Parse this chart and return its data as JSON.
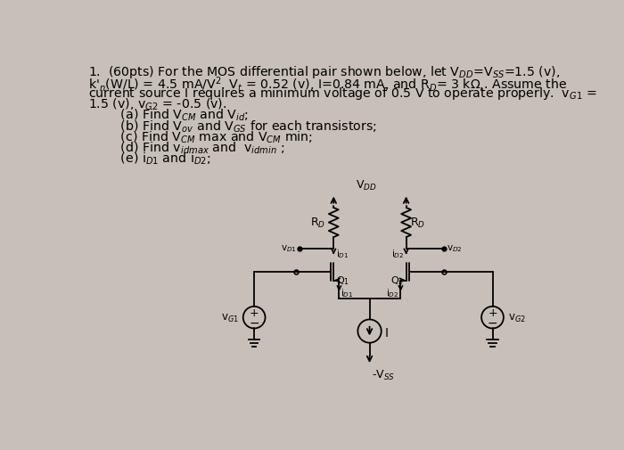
{
  "background_color": "#c8c0b8",
  "title_line1": "1.  (60pts) For the MOS differential pair shown below, let V$_{DD}$=V$_{SS}$=1.5 (v),",
  "title_line2": "k$'_n$(W/L) = 4.5 mA/V$^2$, V$_t$ = 0.52 (v), I=0.84 mA, and R$_D$= 3 kΩ,. Assume the",
  "title_line3": "current source I requires a minimum voltage of 0.5 V to operate properly.  v$_{G1}$ =",
  "title_line4": "1.5 (v), v$_{G2}$ = -0.5 (v).",
  "parts": [
    "        (a) Find V$_{CM}$ and V$_{id}$;",
    "        (b) Find V$_{ov}$ and V$_{GS}$ for each transistors;",
    "        (c) Find V$_{CM}$ max and V$_{CM}$ min;",
    "        (d) Find v$_{idmax}$ and  v$_{idmin}$ ;",
    "        (e) i$_{D1}$ and i$_{D2}$;"
  ],
  "vdd_label": "V$_{DD}$",
  "vss_label": "-V$_{SS}$",
  "rd1_label": "R$_D$",
  "rd2_label": "R$_D$",
  "vd1_label": "v$_{D1}$",
  "vd2_label": "v$_{D2}$",
  "id1_label": "i$_{D1}$",
  "id2_label": "i$_{D2}$",
  "id1b_label": "i$_{D1}$",
  "id2b_label": "i$_{D2}$",
  "q1_label": "Q$_1$",
  "q2_label": "Q$_2$",
  "i_label": "I",
  "vg1_label": "v$_{G1}$",
  "vg2_label": "v$_{G2}$"
}
